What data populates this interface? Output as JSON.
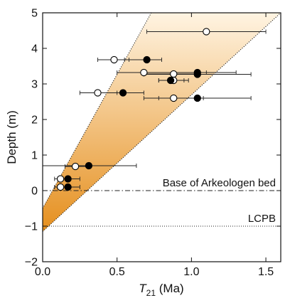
{
  "chart_data": {
    "type": "scatter",
    "xlabel": "T21 (Ma)",
    "xlabel_main": "T",
    "xlabel_sub": "21",
    "xlabel_unit": " (Ma)",
    "ylabel": "Depth (m)",
    "xlim": [
      0.0,
      1.6
    ],
    "ylim": [
      -2,
      5
    ],
    "xticks": [
      0.0,
      0.5,
      1.0,
      1.5
    ],
    "xtick_labels": [
      "0.0",
      "0.5",
      "1.0",
      "1.5"
    ],
    "yticks": [
      -2,
      -1,
      0,
      1,
      2,
      3,
      4,
      5
    ],
    "ytick_labels": [
      "−2",
      "−1",
      "0",
      "1",
      "2",
      "3",
      "4",
      "5"
    ],
    "grid": false,
    "shaded_wedge": {
      "upper_bound_line": {
        "x": [
          0.0,
          0.73
        ],
        "y": [
          -0.5,
          5.0
        ]
      },
      "lower_bound_line": {
        "x": [
          0.0,
          1.6
        ],
        "y": [
          -1.15,
          5.0
        ]
      },
      "fill_color_bottom": "#e58f1e",
      "fill_color_top": "#fff4e2"
    },
    "reference_lines": [
      {
        "depth": 0,
        "label": "Base of Arkeologen bed",
        "style": "dashdot"
      },
      {
        "depth": -1,
        "label": "LCPB",
        "style": "dotted"
      }
    ],
    "series": [
      {
        "marker": "open",
        "color": "#ffffff",
        "points": [
          {
            "x": 1.1,
            "y": 4.47,
            "xerr": [
              0.7,
              1.5
            ]
          },
          {
            "x": 0.48,
            "y": 3.68,
            "xerr": [
              0.37,
              0.58
            ]
          },
          {
            "x": 0.68,
            "y": 3.32,
            "xerr": [
              0.5,
              1.1
            ]
          },
          {
            "x": 0.88,
            "y": 3.28,
            "xerr": [
              0.68,
              1.05
            ]
          },
          {
            "x": 0.88,
            "y": 3.1,
            "xerr": [
              0.78,
              0.98
            ]
          },
          {
            "x": 0.37,
            "y": 2.75,
            "xerr": [
              0.25,
              0.5
            ]
          },
          {
            "x": 0.88,
            "y": 2.6,
            "xerr": [
              0.68,
              1.08
            ]
          },
          {
            "x": 0.22,
            "y": 0.68,
            "xerr": [
              0.15,
              0.3
            ]
          },
          {
            "x": 0.12,
            "y": 0.33,
            "xerr": [
              0.08,
              0.18
            ]
          },
          {
            "x": 0.12,
            "y": 0.1,
            "xerr": [
              0.08,
              0.18
            ]
          }
        ]
      },
      {
        "marker": "filled",
        "color": "#000000",
        "points": [
          {
            "x": 0.7,
            "y": 3.68,
            "xerr": [
              0.55,
              0.8
            ]
          },
          {
            "x": 1.04,
            "y": 3.32,
            "xerr": [
              0.68,
              1.3
            ]
          },
          {
            "x": 1.04,
            "y": 3.27,
            "xerr": [
              0.68,
              1.4
            ]
          },
          {
            "x": 0.86,
            "y": 3.1,
            "xerr": [
              0.78,
              0.95
            ]
          },
          {
            "x": 0.54,
            "y": 2.75,
            "xerr": [
              0.38,
              0.68
            ]
          },
          {
            "x": 1.04,
            "y": 2.6,
            "xerr": [
              0.78,
              1.4
            ]
          },
          {
            "x": 0.31,
            "y": 0.7,
            "xerr": [
              0.0,
              0.63
            ]
          },
          {
            "x": 0.17,
            "y": 0.33,
            "xerr": [
              0.1,
              0.25
            ]
          },
          {
            "x": 0.17,
            "y": 0.1,
            "xerr": [
              0.1,
              0.25
            ]
          }
        ]
      }
    ]
  }
}
